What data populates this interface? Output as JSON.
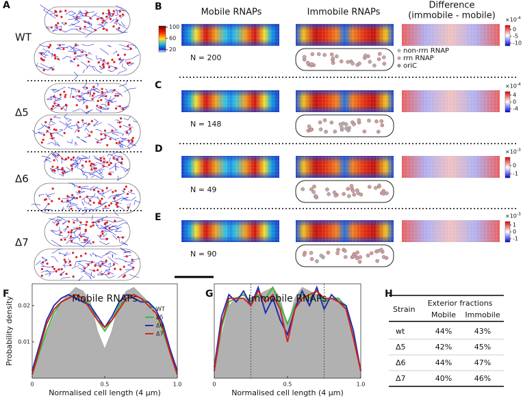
{
  "panel_labels": [
    "A",
    "B",
    "C",
    "D",
    "E",
    "F",
    "G",
    "H"
  ],
  "panel_a": {
    "strains": [
      "WT",
      "Δ5",
      "Δ6",
      "Δ7"
    ]
  },
  "heatmaps": {
    "column_titles": [
      "Mobile RNAPs",
      "Immobile RNAPs"
    ],
    "difference_title": [
      "Difference",
      "(immobile - mobile)"
    ],
    "colorbar": {
      "clim": [
        12,
        104
      ],
      "ticks": [
        100,
        60,
        20
      ]
    },
    "legend": [
      "non-rrn RNAP",
      "rrn RNAP",
      "oriC"
    ],
    "rows": [
      {
        "n": "N = 200",
        "multiplier": "×10",
        "exponent": "-4",
        "clim": [
          -12,
          3
        ],
        "ticks": [
          0,
          -5,
          -10
        ]
      },
      {
        "n": "N = 148",
        "multiplier": "×10",
        "exponent": "-4",
        "clim": [
          -6,
          6
        ],
        "ticks": [
          4,
          0,
          -4
        ]
      },
      {
        "n": "N = 49",
        "multiplier": "×10",
        "exponent": "-3",
        "clim": [
          -1.5,
          1
        ],
        "ticks": [
          0,
          -1
        ]
      },
      {
        "n": "N = 90",
        "multiplier": "×10",
        "exponent": "-3",
        "clim": [
          -1.5,
          1.5
        ],
        "ticks": [
          1,
          0,
          -1
        ]
      }
    ]
  },
  "chart_data": [
    {
      "type": "line",
      "title": "Mobile RNAPs",
      "x_label": "Normalised cell length (4 μm)",
      "y_label": "Probability density",
      "x": [
        0,
        0.05,
        0.1,
        0.15,
        0.2,
        0.25,
        0.3,
        0.35,
        0.4,
        0.45,
        0.5,
        0.55,
        0.6,
        0.65,
        0.7,
        0.75,
        0.8,
        0.85,
        0.9,
        0.95,
        1
      ],
      "xlim": [
        0,
        1
      ],
      "xticks": [
        0,
        0.5,
        {
          "value": 1,
          "label": "1.0"
        }
      ],
      "ylim": [
        0,
        0.026
      ],
      "yticks": [
        0.01,
        0.02
      ],
      "series": [
        {
          "name": "WT",
          "color": "#a9a9a9",
          "fill": true,
          "values": [
            0.001,
            0.006,
            0.012,
            0.017,
            0.021,
            0.023,
            0.025,
            0.024,
            0.021,
            0.013,
            0.008,
            0.013,
            0.021,
            0.024,
            0.025,
            0.023,
            0.021,
            0.017,
            0.012,
            0.006,
            0.001
          ]
        },
        {
          "name": "Δ5",
          "color": "#3cb83c",
          "values": [
            0.001,
            0.007,
            0.013,
            0.018,
            0.021,
            0.022,
            0.023,
            0.022,
            0.02,
            0.016,
            0.013,
            0.016,
            0.02,
            0.022,
            0.023,
            0.022,
            0.021,
            0.018,
            0.013,
            0.007,
            0.001
          ]
        },
        {
          "name": "Δ6",
          "color": "#1f2fb0",
          "values": [
            0.002,
            0.009,
            0.016,
            0.02,
            0.022,
            0.023,
            0.022,
            0.021,
            0.02,
            0.017,
            0.014,
            0.017,
            0.021,
            0.023,
            0.022,
            0.021,
            0.021,
            0.019,
            0.015,
            0.008,
            0.002
          ]
        },
        {
          "name": "Δ7",
          "color": "#d42020",
          "values": [
            0.001,
            0.008,
            0.015,
            0.019,
            0.021,
            0.022,
            0.023,
            0.022,
            0.019,
            0.016,
            0.014,
            0.016,
            0.019,
            0.022,
            0.023,
            0.022,
            0.02,
            0.018,
            0.014,
            0.007,
            0.001
          ]
        }
      ]
    },
    {
      "type": "line",
      "title": "Immobile RNAPs",
      "x_label": "Normalised cell length (4 μm)",
      "x": [
        0,
        0.05,
        0.1,
        0.15,
        0.2,
        0.25,
        0.3,
        0.35,
        0.4,
        0.45,
        0.5,
        0.55,
        0.6,
        0.65,
        0.7,
        0.75,
        0.8,
        0.85,
        0.9,
        0.95,
        1
      ],
      "xlim": [
        0,
        1
      ],
      "xticks": [
        0,
        0.5,
        {
          "value": 1,
          "label": "1.0"
        }
      ],
      "ylim": [
        0,
        0.026
      ],
      "series": [
        {
          "color": "#a9a9a9",
          "fill": true,
          "values": [
            0.002,
            0.012,
            0.02,
            0.022,
            0.022,
            0.022,
            0.023,
            0.024,
            0.025,
            0.022,
            0.014,
            0.022,
            0.025,
            0.024,
            0.023,
            0.022,
            0.022,
            0.022,
            0.02,
            0.012,
            0.002
          ]
        },
        {
          "color": "#3cb83c",
          "values": [
            0.002,
            0.014,
            0.021,
            0.022,
            0.023,
            0.021,
            0.023,
            0.022,
            0.025,
            0.02,
            0.015,
            0.02,
            0.023,
            0.022,
            0.024,
            0.021,
            0.022,
            0.022,
            0.019,
            0.011,
            0.002
          ]
        },
        {
          "color": "#1f2fb0",
          "values": [
            0.003,
            0.017,
            0.023,
            0.021,
            0.024,
            0.02,
            0.025,
            0.018,
            0.022,
            0.016,
            0.012,
            0.019,
            0.024,
            0.02,
            0.025,
            0.019,
            0.023,
            0.021,
            0.02,
            0.013,
            0.002
          ]
        },
        {
          "color": "#d42020",
          "values": [
            0.002,
            0.015,
            0.022,
            0.022,
            0.022,
            0.02,
            0.024,
            0.021,
            0.023,
            0.019,
            0.01,
            0.019,
            0.022,
            0.023,
            0.024,
            0.022,
            0.022,
            0.021,
            0.019,
            0.011,
            0.002
          ]
        }
      ]
    }
  ],
  "table": {
    "header": [
      "Strain",
      "Exterior fractions"
    ],
    "subheader": [
      "Mobile",
      "Immobile"
    ],
    "rows": [
      [
        "wt",
        "44%",
        "43%"
      ],
      [
        "Δ5",
        "42%",
        "45%"
      ],
      [
        "Δ6",
        "44%",
        "47%"
      ],
      [
        "Δ7",
        "40%",
        "46%"
      ]
    ]
  }
}
